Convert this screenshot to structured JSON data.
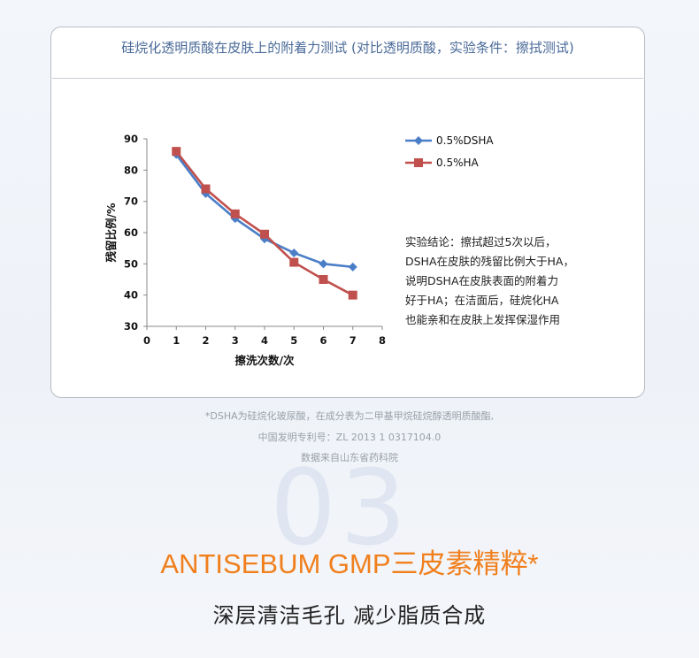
{
  "card_title": "硅烷化透明质酸在皮肤上的附着力测试 (对比透明质酸，实验条件：擦拭测试)",
  "chart_data": {
    "type": "line",
    "xlabel": "擦洗次数/次",
    "ylabel": "残留比例/%",
    "xlim": [
      0,
      8
    ],
    "ylim": [
      30,
      90
    ],
    "x_ticks": [
      "0",
      "1",
      "2",
      "3",
      "4",
      "5",
      "6",
      "7",
      "8"
    ],
    "y_ticks": [
      "30",
      "40",
      "50",
      "60",
      "70",
      "80",
      "90"
    ],
    "grid": false,
    "legend_position": "top-right",
    "x": [
      1,
      2,
      3,
      4,
      5,
      6,
      7
    ],
    "series": [
      {
        "name": "0.5%DSHA",
        "color": "#4a7ec7",
        "marker": "diamond",
        "values": [
          85,
          72.5,
          64.5,
          58,
          53.5,
          50,
          49
        ]
      },
      {
        "name": "0.5%HA",
        "color": "#c0504d",
        "marker": "square",
        "values": [
          86,
          74,
          66,
          59.5,
          50.5,
          45,
          40
        ]
      }
    ]
  },
  "conclusion": [
    "实验结论：擦拭超过5次以后，",
    "DSHA在皮肤的残留比例大于HA，",
    "说明DSHA在皮肤表面的附着力",
    "好于HA；在洁面后，硅烷化HA",
    "也能亲和在皮肤上发挥保湿作用"
  ],
  "footnotes": [
    "*DSHA为硅烷化玻尿酸，在成分表为二甲基甲烷硅烷醇透明质酸酯,",
    "中国发明专利号：ZL  2013 1 0317104.0",
    "数据来自山东省药科院"
  ],
  "section_number": "03",
  "headline": "ANTISEBUM GMP三皮素精粹*",
  "subheadline": "深层清洁毛孔 减少脂质合成",
  "colors": {
    "accent": "#f07f1c",
    "title_blue": "#4a6a98"
  }
}
